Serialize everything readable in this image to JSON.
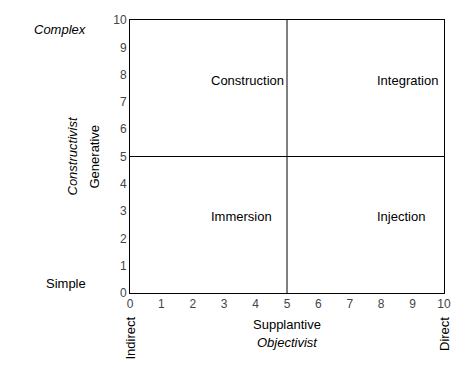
{
  "chart_data": {
    "type": "quadrant",
    "xlim": [
      0,
      10
    ],
    "ylim": [
      0,
      10
    ],
    "xticks": [
      0,
      1,
      2,
      3,
      4,
      5,
      6,
      7,
      8,
      9,
      10
    ],
    "yticks": [
      0,
      1,
      2,
      3,
      4,
      5,
      6,
      7,
      8,
      9,
      10
    ],
    "vlines": [
      5
    ],
    "hlines": [
      5
    ],
    "color": "#000000",
    "grid": false,
    "annotations": [
      {
        "text": "Construction",
        "x": 2.5,
        "y": 7.8
      },
      {
        "text": "Integration",
        "x": 7.8,
        "y": 7.8
      },
      {
        "text": "Immersion",
        "x": 2.5,
        "y": 2.8
      },
      {
        "text": "Injection",
        "x": 7.8,
        "y": 2.8
      }
    ],
    "ylabel": [
      "Constructivist",
      "Generative"
    ],
    "ylabel_ends": [
      "Simple",
      "Complex"
    ],
    "xlabel": [
      "Supplantive",
      "Objectivist"
    ],
    "xlabel_ends": [
      "Indirect",
      "Direct"
    ]
  }
}
